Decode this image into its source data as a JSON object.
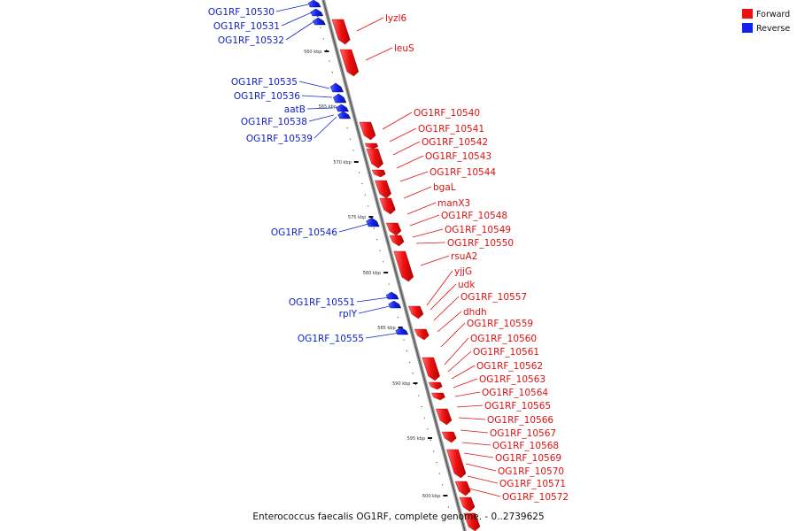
{
  "legend": {
    "forward": {
      "label": "Forward",
      "color": "#ee1111"
    },
    "reverse": {
      "label": "Reverse",
      "color": "#1122ee"
    }
  },
  "caption": "Enterococcus faecalis OG1RF, complete genome. - 0..2739625",
  "ticks": [
    {
      "kbp": 560,
      "label": "560 kbp"
    },
    {
      "kbp": 565,
      "label": "565 kbp"
    },
    {
      "kbp": 570,
      "label": "570 kbp"
    },
    {
      "kbp": 575,
      "label": "575 kbp"
    },
    {
      "kbp": 580,
      "label": "580 kbp"
    },
    {
      "kbp": 585,
      "label": "585 kbp"
    },
    {
      "kbp": 590,
      "label": "590 kbp"
    },
    {
      "kbp": 595,
      "label": "595 kbp"
    },
    {
      "kbp": 600,
      "label": "600 kbp"
    }
  ],
  "forward_genes": [
    {
      "name": "lyzl6"
    },
    {
      "name": "leuS"
    },
    {
      "name": "OG1RF_10540"
    },
    {
      "name": "OG1RF_10541"
    },
    {
      "name": "OG1RF_10542"
    },
    {
      "name": "OG1RF_10543"
    },
    {
      "name": "OG1RF_10544"
    },
    {
      "name": "bgaL"
    },
    {
      "name": "manX3"
    },
    {
      "name": "OG1RF_10548"
    },
    {
      "name": "OG1RF_10549"
    },
    {
      "name": "OG1RF_10550"
    },
    {
      "name": "rsuA2"
    },
    {
      "name": "yjjG"
    },
    {
      "name": "udk"
    },
    {
      "name": "OG1RF_10557"
    },
    {
      "name": "dhdh"
    },
    {
      "name": "OG1RF_10559"
    },
    {
      "name": "OG1RF_10560"
    },
    {
      "name": "OG1RF_10561"
    },
    {
      "name": "OG1RF_10562"
    },
    {
      "name": "OG1RF_10563"
    },
    {
      "name": "OG1RF_10564"
    },
    {
      "name": "OG1RF_10565"
    },
    {
      "name": "OG1RF_10566"
    },
    {
      "name": "OG1RF_10567"
    },
    {
      "name": "OG1RF_10568"
    },
    {
      "name": "OG1RF_10569"
    },
    {
      "name": "OG1RF_10570"
    },
    {
      "name": "OG1RF_10571"
    },
    {
      "name": "OG1RF_10572"
    }
  ],
  "reverse_genes": [
    {
      "name": "OG1RF_10530"
    },
    {
      "name": "OG1RF_10531"
    },
    {
      "name": "OG1RF_10532"
    },
    {
      "name": "OG1RF_10535"
    },
    {
      "name": "OG1RF_10536"
    },
    {
      "name": "aatB"
    },
    {
      "name": "OG1RF_10538"
    },
    {
      "name": "OG1RF_10539"
    },
    {
      "name": "OG1RF_10546"
    },
    {
      "name": "OG1RF_10551"
    },
    {
      "name": "rplY"
    },
    {
      "name": "OG1RF_10555"
    }
  ]
}
